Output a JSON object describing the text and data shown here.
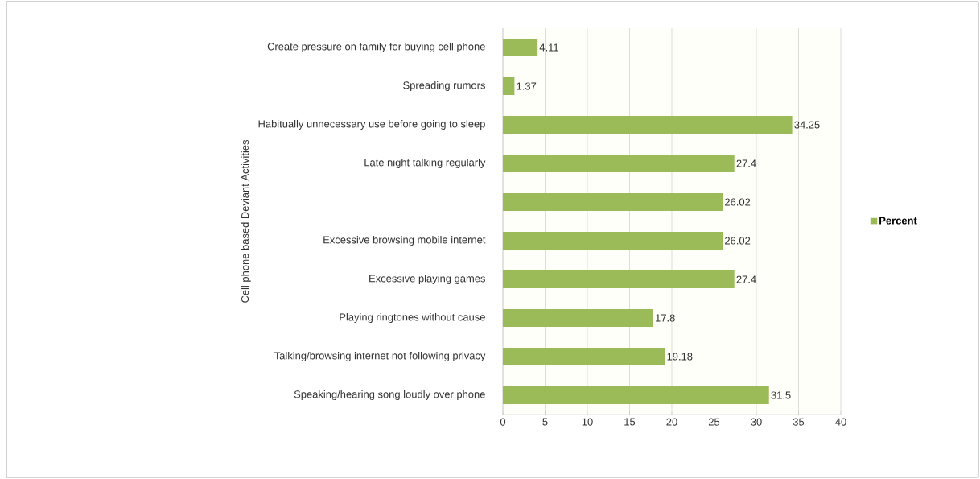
{
  "chart_data": {
    "type": "bar",
    "orientation": "horizontal",
    "ylabel": "Cell phone based Deviant Activities",
    "categories": [
      "Create pressure on family for buying cell phone",
      "Spreading rumors",
      "Habitually unnecessary use before going to sleep",
      "Late night talking regularly",
      null,
      "Excessive browsing mobile internet",
      "Excessive playing games",
      "Playing ringtones without cause",
      "Talking/browsing internet not following privacy",
      "Speaking/hearing song loudly over phone"
    ],
    "series": [
      {
        "name": "Percent",
        "color": "#9bbb59",
        "values": [
          4.11,
          1.37,
          34.25,
          27.4,
          26.02,
          26.02,
          27.4,
          17.8,
          19.18,
          31.5
        ]
      }
    ],
    "xlim": [
      0,
      40
    ],
    "xticks": [
      0,
      5,
      10,
      15,
      20,
      25,
      30,
      35,
      40
    ],
    "grid": "x",
    "legend": "right",
    "data_labels": true
  }
}
